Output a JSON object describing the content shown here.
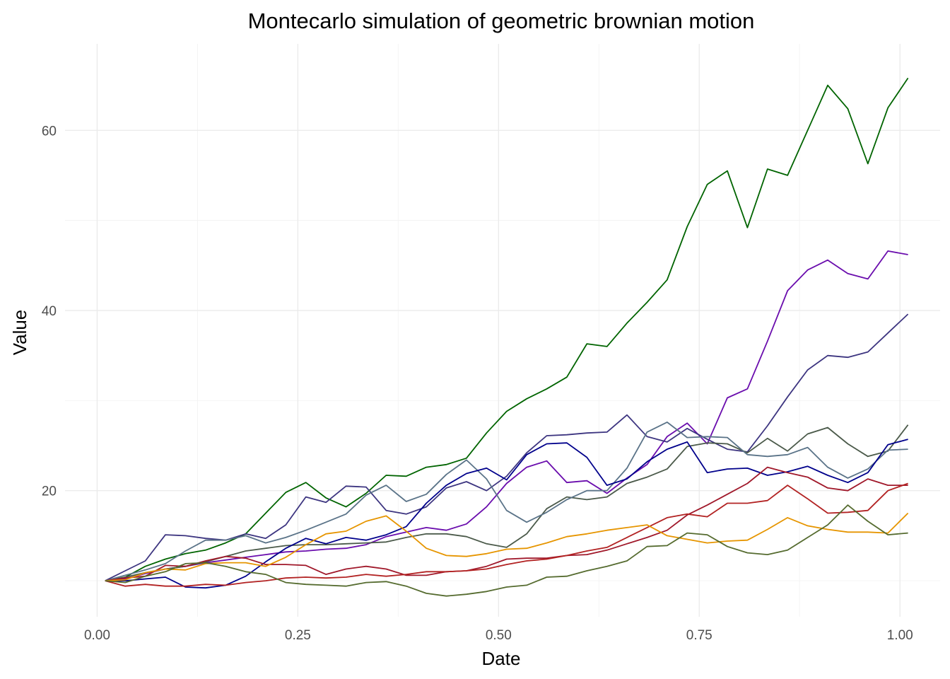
{
  "chart_data": {
    "type": "line",
    "title": "Montecarlo simulation of geometric brownian motion",
    "xlabel": "Date",
    "ylabel": "Value",
    "xlim": [
      -0.04,
      1.05
    ],
    "ylim": [
      6.0,
      69.6
    ],
    "x_ticks": [
      0.0,
      0.25,
      0.5,
      0.75,
      1.0
    ],
    "x_tick_labels": [
      "0.00",
      "0.25",
      "0.50",
      "0.75",
      "1.00"
    ],
    "y_ticks": [
      20,
      40,
      60
    ],
    "y_tick_labels": [
      "20",
      "40",
      "60"
    ],
    "y_minor_ticks": [
      10,
      30,
      50
    ],
    "x_minor_ticks": [
      0.125,
      0.375,
      0.625,
      0.875
    ],
    "grid": true,
    "legend": "none",
    "x": [
      0.01,
      0.035,
      0.06,
      0.085,
      0.11,
      0.135,
      0.16,
      0.185,
      0.21,
      0.235,
      0.26,
      0.285,
      0.31,
      0.335,
      0.36,
      0.385,
      0.41,
      0.435,
      0.46,
      0.485,
      0.51,
      0.535,
      0.56,
      0.585,
      0.61,
      0.635,
      0.66,
      0.685,
      0.71,
      0.735,
      0.76,
      0.785,
      0.81,
      0.835,
      0.86,
      0.885,
      0.91,
      0.935,
      0.96,
      0.985,
      1.01
    ],
    "series": [
      {
        "color": "#006400",
        "values": [
          10.0,
          10.4,
          11.6,
          12.4,
          13.0,
          13.4,
          14.2,
          15.2,
          17.5,
          19.8,
          20.9,
          19.2,
          18.2,
          19.7,
          21.7,
          21.6,
          22.6,
          22.9,
          23.6,
          26.4,
          28.8,
          30.2,
          31.3,
          32.6,
          36.3,
          36.0,
          38.6,
          40.9,
          43.4,
          49.3,
          54.0,
          55.5,
          49.2,
          55.7,
          55.0,
          60.0,
          65.0,
          62.4,
          56.3,
          62.5,
          65.8
        ]
      },
      {
        "color": "#6a0dad",
        "values": [
          10.0,
          10.2,
          10.8,
          11.3,
          11.6,
          12.0,
          12.3,
          12.6,
          12.9,
          13.2,
          13.3,
          13.5,
          13.6,
          14.0,
          14.9,
          15.4,
          15.9,
          15.6,
          16.3,
          18.2,
          20.8,
          22.6,
          23.3,
          20.9,
          21.1,
          19.7,
          21.4,
          22.9,
          26.0,
          27.5,
          25.2,
          30.3,
          31.3,
          36.6,
          42.2,
          44.5,
          45.6,
          44.1,
          43.5,
          46.6,
          46.2
        ]
      },
      {
        "color": "#3d3580",
        "values": [
          10.0,
          11.1,
          12.2,
          15.1,
          15.0,
          14.7,
          14.5,
          15.2,
          14.7,
          16.2,
          19.3,
          18.7,
          20.5,
          20.4,
          17.8,
          17.4,
          18.2,
          20.3,
          21.0,
          20.0,
          21.6,
          24.2,
          26.1,
          26.2,
          26.4,
          26.5,
          28.4,
          26.0,
          25.4,
          26.9,
          25.7,
          24.6,
          24.3,
          27.2,
          30.4,
          33.4,
          35.0,
          34.8,
          35.4,
          37.5,
          39.6
        ]
      },
      {
        "color": "#4b5a4a",
        "values": [
          10.0,
          10.4,
          10.9,
          11.3,
          11.6,
          12.1,
          12.7,
          13.3,
          13.6,
          13.9,
          14.0,
          14.0,
          14.1,
          14.2,
          14.3,
          14.8,
          15.2,
          15.2,
          14.9,
          14.1,
          13.7,
          15.2,
          18.0,
          19.3,
          19.0,
          19.3,
          20.8,
          21.5,
          22.4,
          24.9,
          25.3,
          25.2,
          24.2,
          25.8,
          24.4,
          26.3,
          27.0,
          25.2,
          23.8,
          24.4,
          27.3
        ]
      },
      {
        "color": "#5a7388",
        "values": [
          10.0,
          10.6,
          11.2,
          11.9,
          13.3,
          14.5,
          14.5,
          15.0,
          14.2,
          14.8,
          15.6,
          16.5,
          17.4,
          19.5,
          20.6,
          18.8,
          19.6,
          21.8,
          23.4,
          21.3,
          17.8,
          16.5,
          17.6,
          19.0,
          20.0,
          20.0,
          22.5,
          26.5,
          27.6,
          25.9,
          26.0,
          25.9,
          24.0,
          23.8,
          24.0,
          24.8,
          22.6,
          21.4,
          22.4,
          24.5,
          24.6
        ]
      },
      {
        "color": "#00008b",
        "values": [
          10.0,
          10.0,
          10.2,
          10.4,
          9.3,
          9.2,
          9.5,
          10.5,
          12.1,
          13.6,
          14.7,
          14.1,
          14.8,
          14.5,
          15.1,
          16.0,
          18.6,
          20.6,
          21.9,
          22.5,
          21.2,
          24.0,
          25.2,
          25.3,
          23.7,
          20.6,
          21.3,
          23.2,
          24.6,
          25.4,
          22.0,
          22.4,
          22.5,
          21.7,
          22.1,
          22.7,
          21.7,
          20.9,
          22.0,
          25.1,
          25.7
        ]
      },
      {
        "color": "#a0182a",
        "values": [
          10.0,
          10.3,
          10.5,
          11.7,
          11.6,
          12.2,
          12.7,
          12.5,
          11.8,
          11.8,
          11.7,
          10.7,
          11.3,
          11.6,
          11.3,
          10.6,
          10.6,
          11.0,
          11.1,
          11.6,
          12.4,
          12.5,
          12.5,
          12.8,
          12.9,
          13.4,
          14.1,
          14.8,
          15.6,
          17.3,
          18.4,
          19.6,
          20.8,
          22.6,
          22.0,
          21.5,
          20.3,
          20.0,
          21.3,
          20.6,
          20.6
        ]
      },
      {
        "color": "#b22222",
        "values": [
          10.0,
          9.4,
          9.6,
          9.4,
          9.4,
          9.6,
          9.5,
          9.8,
          10.0,
          10.3,
          10.4,
          10.3,
          10.4,
          10.7,
          10.5,
          10.7,
          11.0,
          11.0,
          11.1,
          11.3,
          11.8,
          12.2,
          12.4,
          12.8,
          13.3,
          13.7,
          14.8,
          15.9,
          17.0,
          17.4,
          17.1,
          18.6,
          18.6,
          18.9,
          20.6,
          19.1,
          17.5,
          17.6,
          17.8,
          20.0,
          20.8
        ]
      },
      {
        "color": "#e69500",
        "values": [
          10.0,
          10.1,
          10.9,
          11.3,
          11.2,
          11.9,
          12.0,
          12.0,
          11.6,
          12.6,
          14.0,
          15.2,
          15.5,
          16.6,
          17.2,
          15.5,
          13.6,
          12.8,
          12.7,
          13.0,
          13.5,
          13.6,
          14.2,
          14.9,
          15.2,
          15.6,
          15.9,
          16.2,
          15.0,
          14.6,
          14.2,
          14.4,
          14.5,
          15.7,
          17.0,
          16.1,
          15.7,
          15.4,
          15.4,
          15.3,
          17.5
        ]
      },
      {
        "color": "#556b2f",
        "values": [
          10.0,
          9.8,
          10.5,
          11.0,
          11.9,
          12.0,
          11.6,
          11.0,
          10.7,
          9.8,
          9.6,
          9.5,
          9.4,
          9.8,
          9.9,
          9.4,
          8.6,
          8.3,
          8.5,
          8.8,
          9.3,
          9.5,
          10.4,
          10.5,
          11.1,
          11.6,
          12.2,
          13.8,
          13.9,
          15.3,
          15.1,
          13.8,
          13.1,
          12.9,
          13.4,
          14.8,
          16.2,
          18.4,
          16.6,
          15.1,
          15.3
        ]
      }
    ]
  }
}
